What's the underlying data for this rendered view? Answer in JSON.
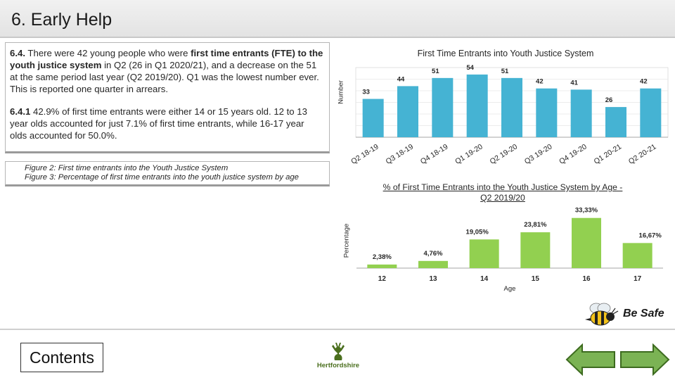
{
  "header": {
    "title": "6. Early Help"
  },
  "text_panel": {
    "para1": {
      "num": "6.4.",
      "pre": " There were 42 young people who were ",
      "bold": "first time entrants (FTE) to the youth justice system",
      "post": " in Q2 (26 in Q1 2020/21), and a decrease on the 51 at the same period last year (Q2 2019/20). Q1 was the lowest number ever.  This is reported one quarter in arrears."
    },
    "para2": {
      "num": "6.4.1",
      "text": " 42.9% of first time entrants were either 14 or 15 years old. 12 to 13 year olds accounted for just 7.1% of first time entrants, while 16-17 year olds accounted for 50.0%."
    }
  },
  "figures": {
    "line1": "Figure 2: First time entrants into the Youth Justice System",
    "line2": "Figure 3: Percentage of first time entrants into the youth justice system by age"
  },
  "chart_data": [
    {
      "type": "bar",
      "title": "First Time Entrants into Youth Justice System",
      "ylabel": "Number",
      "xlabel": "",
      "categories": [
        "Q2 18-19",
        "Q3 18-19",
        "Q4 18-19",
        "Q1 19-20",
        "Q2 19-20",
        "Q3 19-20",
        "Q4 19-20",
        "Q1 20-21",
        "Q2 20-21"
      ],
      "values": [
        33,
        44,
        51,
        54,
        51,
        42,
        41,
        26,
        42
      ],
      "ylim": [
        0,
        60
      ],
      "grid": true,
      "bar_color": "#45b3d3"
    },
    {
      "type": "bar",
      "title_line1": "% of First Time Entrants into the Youth Justice System by Age -",
      "title_line2": "Q2 2019/20",
      "ylabel": "Percentage",
      "xlabel": "Age",
      "categories": [
        "12",
        "13",
        "14",
        "15",
        "16",
        "17"
      ],
      "values": [
        2.38,
        4.76,
        19.05,
        23.81,
        33.33,
        16.67
      ],
      "value_labels": [
        "2,38%",
        "4,76%",
        "19,05%",
        "23,81%",
        "33,33%",
        "16,67%"
      ],
      "ylim": [
        0,
        36
      ],
      "grid": false,
      "bar_color": "#92d050"
    }
  ],
  "footer": {
    "be_safe": "Be Safe",
    "contents": "Contents",
    "logo_text": "Hertfordshire"
  },
  "colors": {
    "accent_green": "#92d050",
    "arrow_green": "#7bb354",
    "chart_blue": "#45b3d3"
  },
  "icons": {
    "bee": "bee-icon",
    "logo": "hertfordshire-stag-logo",
    "prev": "left-arrow-icon",
    "next": "right-arrow-icon"
  }
}
